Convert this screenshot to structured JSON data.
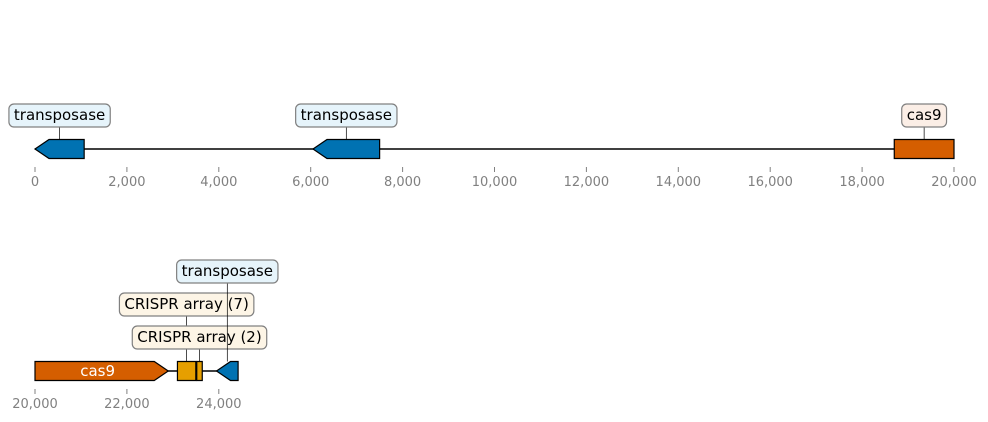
{
  "colors": {
    "transposase": "#0072b2",
    "cas9": "#d55e00",
    "crispr": "#e69f00",
    "transposase_label_bg": "#e6f4fb",
    "cas9_label_bg": "#fbeee6",
    "crispr_label_bg": "#fdf5e6",
    "label_border": "#808080",
    "tick_text": "#808080"
  },
  "tracks": [
    {
      "range": [
        0,
        20000
      ],
      "tick_values": [
        0,
        2000,
        4000,
        6000,
        8000,
        10000,
        12000,
        14000,
        16000,
        18000,
        20000
      ],
      "tick_labels": [
        "0",
        "2,000",
        "4,000",
        "6,000",
        "8,000",
        "10,000",
        "12,000",
        "14,000",
        "16,000",
        "18,000",
        "20,000"
      ],
      "features": [
        {
          "start": 0,
          "end": 1070,
          "strand": -1,
          "kind": "transposase",
          "label": "transposase"
        },
        {
          "start": 6050,
          "end": 7500,
          "strand": -1,
          "kind": "transposase",
          "label": "transposase"
        },
        {
          "start": 18700,
          "end": 20000,
          "strand": 0,
          "kind": "cas9",
          "label": "cas9"
        }
      ]
    },
    {
      "range": [
        20000,
        40000
      ],
      "tick_values": [
        20000,
        22000,
        24000
      ],
      "tick_labels": [
        "20,000",
        "22,000",
        "24,000"
      ],
      "features": [
        {
          "start": 20000,
          "end": 22900,
          "strand": 1,
          "kind": "cas9",
          "label": "cas9",
          "inline_label": true
        },
        {
          "start": 23100,
          "end": 23500,
          "strand": 0,
          "kind": "crispr",
          "label": "CRISPR array (7)",
          "level": 2
        },
        {
          "start": 23520,
          "end": 23640,
          "strand": 0,
          "kind": "crispr",
          "label": "CRISPR array (2)",
          "level": 1
        },
        {
          "start": 23950,
          "end": 24420,
          "strand": -1,
          "kind": "transposase",
          "label": "transposase",
          "level": 3
        }
      ]
    }
  ]
}
